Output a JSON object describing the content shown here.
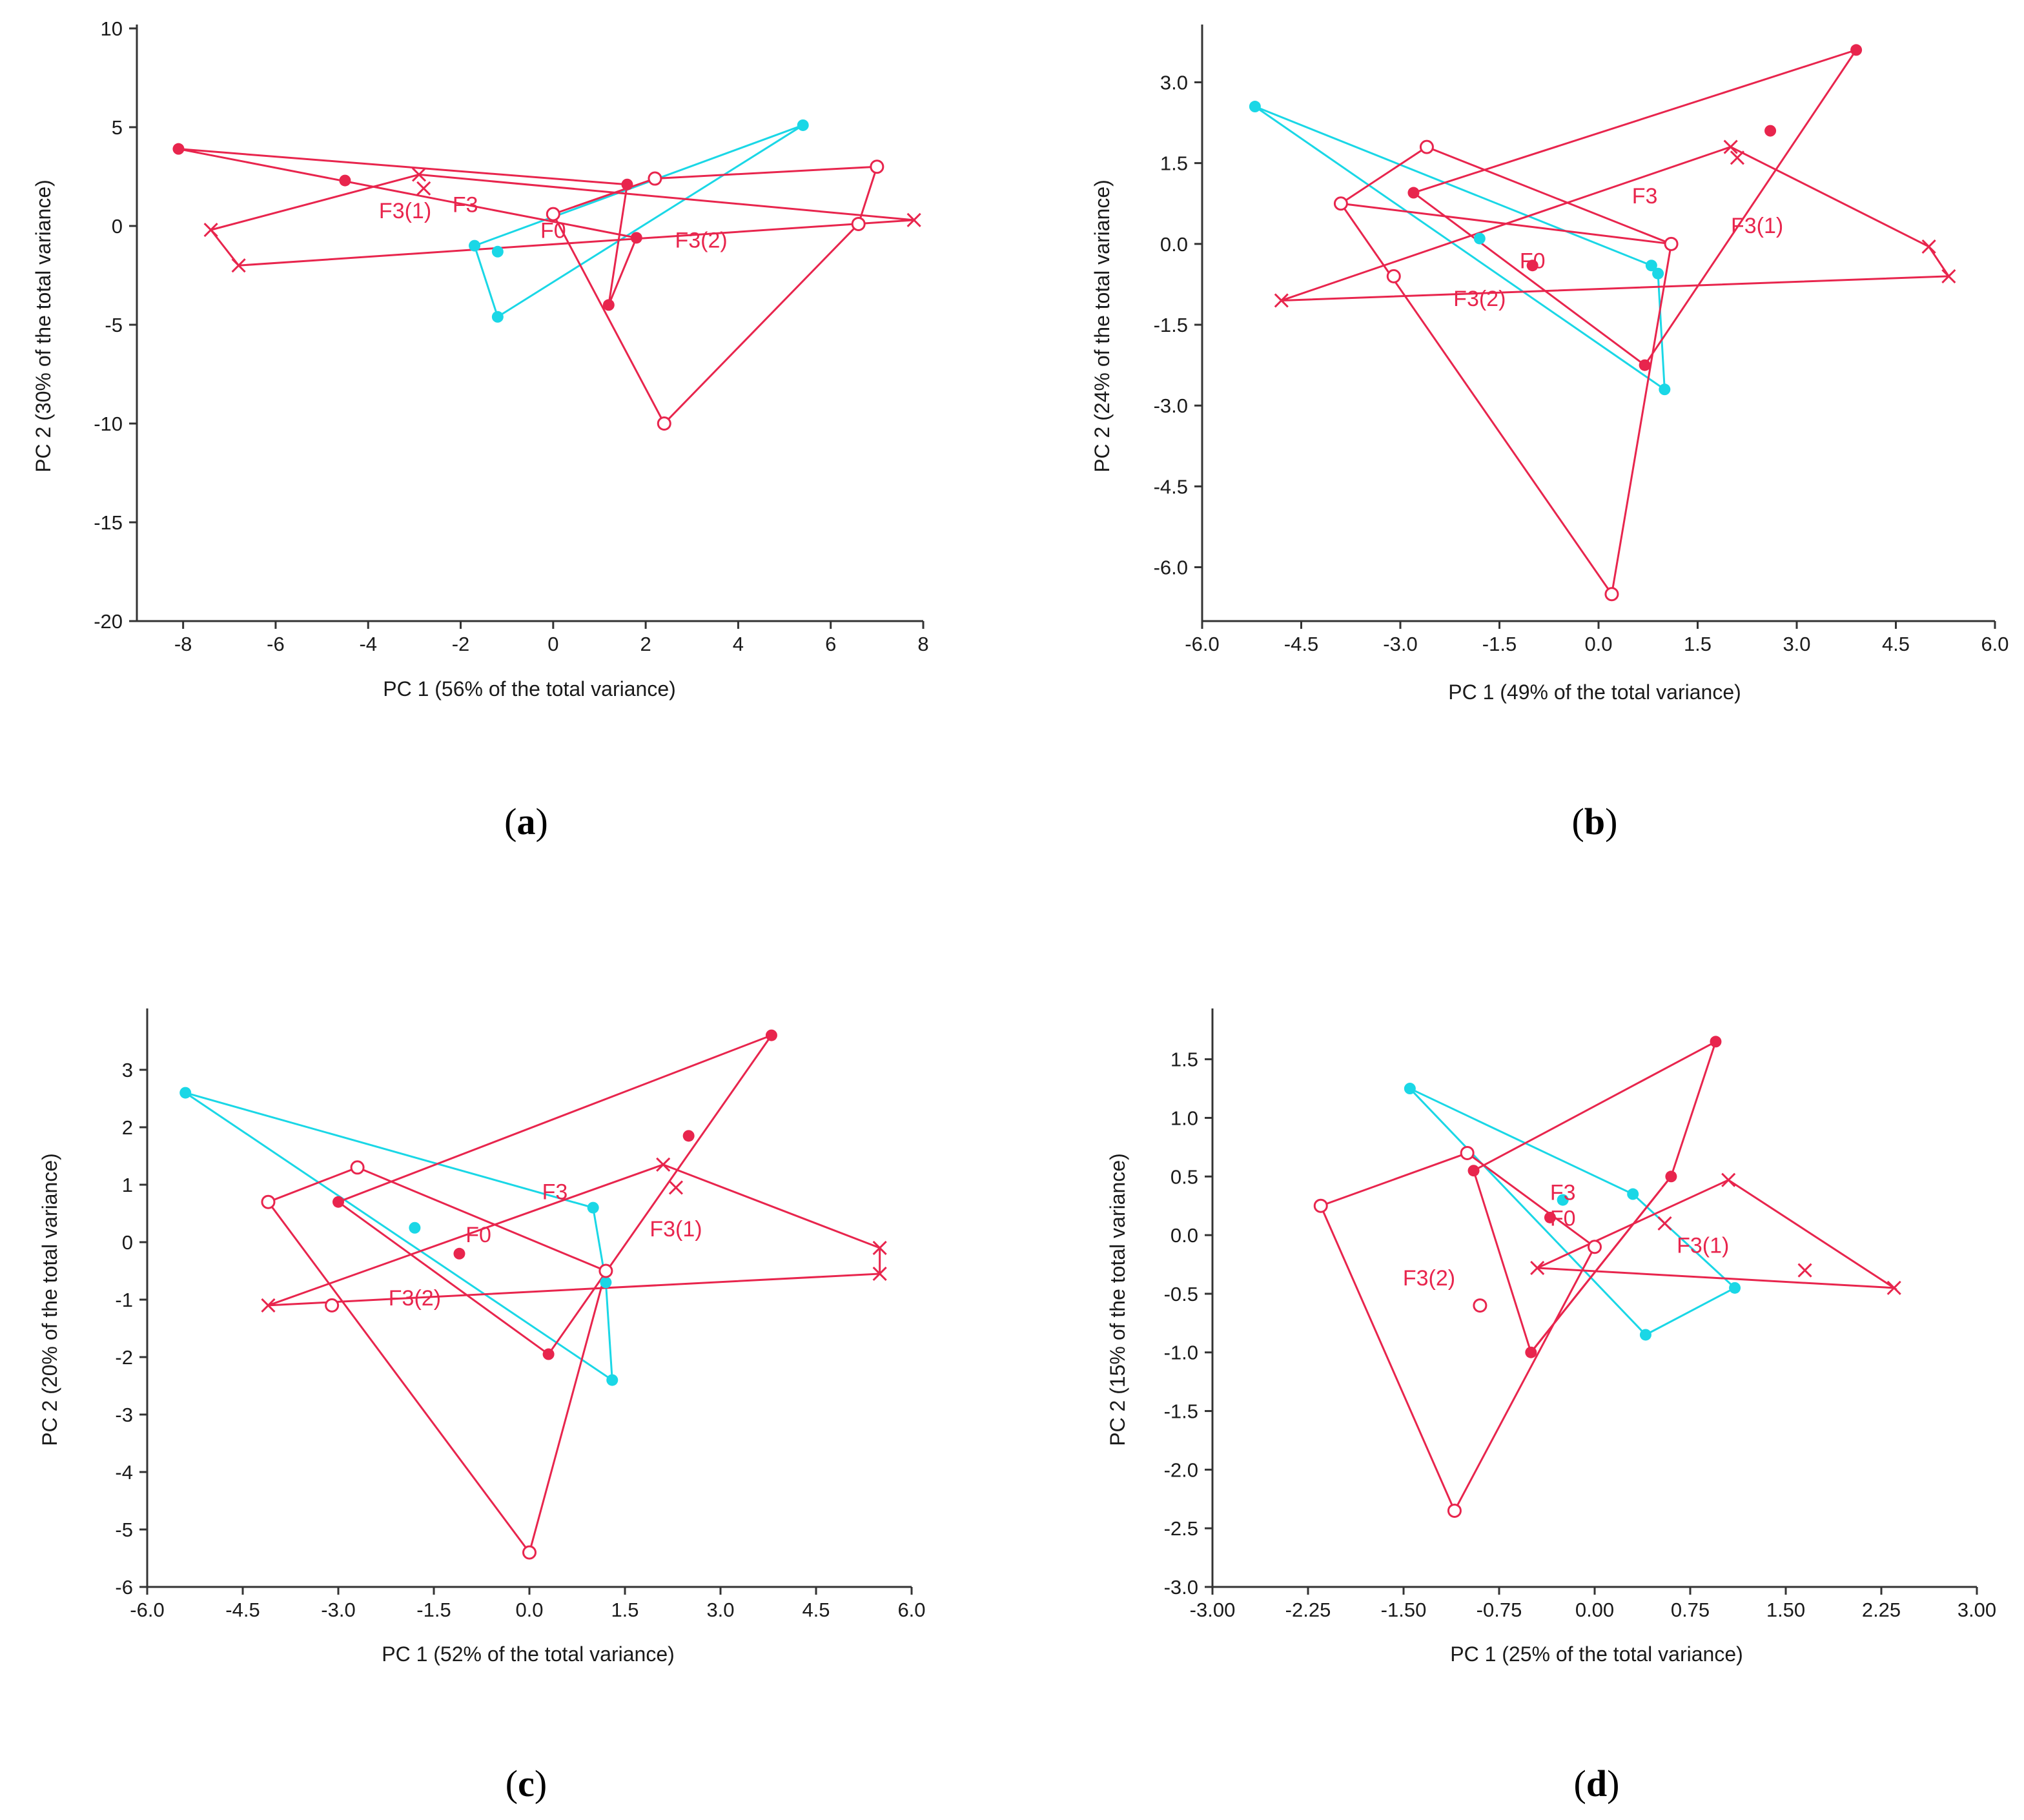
{
  "colors": {
    "red": "#e8254d",
    "cyan": "#1ad7e6",
    "axis": "#333333"
  },
  "chart_data": [
    {
      "id": "a",
      "type": "scatter",
      "panel_label": "a",
      "xlabel": "PC 1 (56% of the total variance)",
      "ylabel": "PC 2 (30% of the total variance)",
      "xlim": [
        -9.0,
        8.0
      ],
      "ylim": [
        -20,
        10
      ],
      "xticks": [
        "-8",
        "-6",
        "-4",
        "-2",
        "0",
        "2",
        "4",
        "6",
        "8"
      ],
      "xtick_values": [
        -8,
        -6,
        -4,
        -2,
        0,
        2,
        4,
        6,
        8
      ],
      "yticks": [
        "10",
        "5",
        "0",
        "-5",
        "-10",
        "-15",
        "-20"
      ],
      "ytick_values": [
        10,
        5,
        0,
        -5,
        -10,
        -15,
        -20
      ],
      "series": [
        {
          "name": "F3",
          "color": "cyan",
          "marker": "dot",
          "points": [
            [
              -1.7,
              -1.0
            ],
            [
              -1.2,
              -1.3
            ],
            [
              5.4,
              5.1
            ],
            [
              -1.2,
              -4.6
            ]
          ],
          "hull": [
            0,
            2,
            3,
            0
          ]
        },
        {
          "name": "F0",
          "color": "red",
          "marker": "dot",
          "points": [
            [
              -8.1,
              3.9
            ],
            [
              -4.5,
              2.3
            ],
            [
              1.6,
              2.1
            ],
            [
              1.8,
              -0.6
            ],
            [
              1.2,
              -4.0
            ]
          ],
          "hull": [
            0,
            2,
            4,
            3,
            0
          ]
        },
        {
          "name": "F3(1)",
          "color": "red",
          "marker": "circle",
          "points": [
            [
              0.0,
              0.6
            ],
            [
              2.2,
              2.4
            ],
            [
              7.0,
              3.0
            ],
            [
              6.6,
              0.1
            ],
            [
              2.4,
              -10.0
            ]
          ],
          "hull": [
            0,
            1,
            2,
            3,
            4,
            0
          ]
        },
        {
          "name": "F3(2)",
          "color": "red",
          "marker": "cross",
          "points": [
            [
              -7.4,
              -0.2
            ],
            [
              -2.9,
              2.6
            ],
            [
              -2.8,
              1.9
            ],
            [
              -6.8,
              -2.0
            ],
            [
              7.8,
              0.3
            ]
          ],
          "hull": [
            0,
            1,
            4,
            3,
            0
          ]
        }
      ],
      "labels": [
        {
          "text": "F3(1)",
          "x": -3.2,
          "y": 0.4
        },
        {
          "text": "F3",
          "x": -1.9,
          "y": 0.7
        },
        {
          "text": "F0",
          "x": 0.0,
          "y": -0.6
        },
        {
          "text": "F3(2)",
          "x": 3.2,
          "y": -1.1
        }
      ]
    },
    {
      "id": "b",
      "type": "scatter",
      "panel_label": "b",
      "xlabel": "PC 1 (49% of the total variance)",
      "ylabel": "PC 2 (24% of the total variance)",
      "xlim": [
        -6.0,
        6.0
      ],
      "ylim": [
        -7.0,
        4.0
      ],
      "xticks": [
        "-6.0",
        "-4.5",
        "-3.0",
        "-1.5",
        "0.0",
        "1.5",
        "3.0",
        "4.5",
        "6.0"
      ],
      "xtick_values": [
        -6.0,
        -4.5,
        -3.0,
        -1.5,
        0.0,
        1.5,
        3.0,
        4.5,
        6.0
      ],
      "yticks": [
        "3.0",
        "1.5",
        "0.0",
        "-1.5",
        "-3.0",
        "-4.5",
        "-6.0"
      ],
      "ytick_values": [
        3.0,
        1.5,
        0.0,
        -1.5,
        -3.0,
        -4.5,
        -6.0
      ],
      "series": [
        {
          "name": "F3",
          "color": "cyan",
          "marker": "dot",
          "points": [
            [
              -5.2,
              2.55
            ],
            [
              -1.8,
              0.1
            ],
            [
              0.8,
              -0.4
            ],
            [
              0.9,
              -0.55
            ],
            [
              1.0,
              -2.7
            ]
          ],
          "hull": [
            0,
            2,
            3,
            4,
            0
          ]
        },
        {
          "name": "F0",
          "color": "red",
          "marker": "dot",
          "points": [
            [
              3.9,
              3.6
            ],
            [
              2.6,
              2.1
            ],
            [
              -2.8,
              0.95
            ],
            [
              -1.0,
              -0.4
            ],
            [
              0.7,
              -2.25
            ]
          ],
          "hull": [
            0,
            2,
            4,
            0
          ]
        },
        {
          "name": "F3(1)",
          "color": "red",
          "marker": "circle",
          "points": [
            [
              -2.6,
              1.8
            ],
            [
              -3.9,
              0.75
            ],
            [
              1.1,
              0.0
            ],
            [
              -3.1,
              -0.6
            ],
            [
              0.2,
              -6.5
            ]
          ],
          "hull": [
            0,
            2,
            1,
            0
          ]
        },
        {
          "name": "F3(2)",
          "color": "red",
          "marker": "cross",
          "points": [
            [
              2.0,
              1.8
            ],
            [
              2.1,
              1.6
            ],
            [
              5.0,
              -0.05
            ],
            [
              5.3,
              -0.6
            ],
            [
              -4.8,
              -1.05
            ]
          ],
          "hull": [
            0,
            2,
            3,
            4,
            0
          ]
        }
      ],
      "extra_segments": [
        {
          "color": "red",
          "from": [
            -3.9,
            0.75
          ],
          "to": [
            0.2,
            -6.5
          ]
        },
        {
          "color": "red",
          "from": [
            0.2,
            -6.5
          ],
          "to": [
            1.1,
            0.0
          ]
        }
      ],
      "labels": [
        {
          "text": "F3",
          "x": 0.7,
          "y": 0.75
        },
        {
          "text": "F3(1)",
          "x": 2.4,
          "y": 0.2
        },
        {
          "text": "F0",
          "x": -1.0,
          "y": -0.45
        },
        {
          "text": "F3(2)",
          "x": -1.8,
          "y": -1.15
        }
      ]
    },
    {
      "id": "c",
      "type": "scatter",
      "panel_label": "c",
      "xlabel": "PC 1 (52% of the total variance)",
      "ylabel": "PC 2 (20% of the total variance)",
      "xlim": [
        -6.0,
        6.0
      ],
      "ylim": [
        -6,
        4
      ],
      "xticks": [
        "-6.0",
        "-4.5",
        "-3.0",
        "-1.5",
        "0.0",
        "1.5",
        "3.0",
        "4.5",
        "6.0"
      ],
      "xtick_values": [
        -6.0,
        -4.5,
        -3.0,
        -1.5,
        0.0,
        1.5,
        3.0,
        4.5,
        6.0
      ],
      "yticks": [
        "3",
        "2",
        "1",
        "0",
        "-1",
        "-2",
        "-3",
        "-4",
        "-5",
        "-6"
      ],
      "ytick_values": [
        3,
        2,
        1,
        0,
        -1,
        -2,
        -3,
        -4,
        -5,
        -6
      ],
      "series": [
        {
          "name": "F3",
          "color": "cyan",
          "marker": "dot",
          "points": [
            [
              -5.4,
              2.6
            ],
            [
              -1.8,
              0.25
            ],
            [
              1.0,
              0.6
            ],
            [
              1.2,
              -0.7
            ],
            [
              1.3,
              -2.4
            ]
          ],
          "hull": [
            0,
            2,
            3,
            4,
            0
          ]
        },
        {
          "name": "F0",
          "color": "red",
          "marker": "dot",
          "points": [
            [
              3.8,
              3.6
            ],
            [
              2.5,
              1.85
            ],
            [
              -3.0,
              0.7
            ],
            [
              -1.1,
              -0.2
            ],
            [
              0.3,
              -1.95
            ]
          ],
          "hull": [
            0,
            2,
            4,
            0
          ]
        },
        {
          "name": "F3(1)",
          "color": "red",
          "marker": "circle",
          "points": [
            [
              -2.7,
              1.3
            ],
            [
              -4.1,
              0.7
            ],
            [
              1.2,
              -0.5
            ],
            [
              -3.1,
              -1.1
            ],
            [
              0.0,
              -5.4
            ]
          ],
          "hull": [
            0,
            2,
            4,
            1,
            0
          ]
        },
        {
          "name": "F3(2)",
          "color": "red",
          "marker": "cross",
          "points": [
            [
              2.1,
              1.35
            ],
            [
              2.3,
              0.95
            ],
            [
              5.5,
              -0.1
            ],
            [
              5.5,
              -0.55
            ],
            [
              -4.1,
              -1.1
            ]
          ],
          "hull": [
            0,
            2,
            3,
            4,
            0
          ]
        }
      ],
      "labels": [
        {
          "text": "F3",
          "x": 0.4,
          "y": 0.75
        },
        {
          "text": "F0",
          "x": -0.8,
          "y": 0.0
        },
        {
          "text": "F3(1)",
          "x": 2.3,
          "y": 0.1
        },
        {
          "text": "F3(2)",
          "x": -1.8,
          "y": -1.1
        }
      ]
    },
    {
      "id": "d",
      "type": "scatter",
      "panel_label": "d",
      "xlabel": "PC 1 (25% of the total variance)",
      "ylabel": "PC 2 (15% of the total variance)",
      "xlim": [
        -3.0,
        3.0
      ],
      "ylim": [
        -3.0,
        1.9
      ],
      "xticks": [
        "-3.00",
        "-2.25",
        "-1.50",
        "-0.75",
        "0.00",
        "0.75",
        "1.50",
        "2.25",
        "3.00"
      ],
      "xtick_values": [
        -3.0,
        -2.25,
        -1.5,
        -0.75,
        0.0,
        0.75,
        1.5,
        2.25,
        3.0
      ],
      "yticks": [
        "1.5",
        "1.0",
        "0.5",
        "0.0",
        "-0.5",
        "-1.0",
        "-1.5",
        "-2.0",
        "-2.5",
        "-3.0"
      ],
      "ytick_values": [
        1.5,
        1.0,
        0.5,
        0.0,
        -0.5,
        -1.0,
        -1.5,
        -2.0,
        -2.5,
        -3.0
      ],
      "series": [
        {
          "name": "F3",
          "color": "cyan",
          "marker": "dot",
          "points": [
            [
              -1.45,
              1.25
            ],
            [
              -0.25,
              0.3
            ],
            [
              0.3,
              0.35
            ],
            [
              1.1,
              -0.45
            ],
            [
              0.4,
              -0.85
            ]
          ],
          "hull": [
            0,
            2,
            3,
            4,
            0
          ]
        },
        {
          "name": "F0",
          "color": "red",
          "marker": "dot",
          "points": [
            [
              0.95,
              1.65
            ],
            [
              0.6,
              0.5
            ],
            [
              -0.95,
              0.55
            ],
            [
              -0.35,
              0.15
            ],
            [
              -0.5,
              -1.0
            ]
          ],
          "hull": [
            0,
            1,
            4,
            2,
            0
          ]
        },
        {
          "name": "F3(1)",
          "color": "red",
          "marker": "circle",
          "points": [
            [
              -1.0,
              0.7
            ],
            [
              -2.15,
              0.25
            ],
            [
              0.0,
              -0.1
            ],
            [
              -0.9,
              -0.6
            ],
            [
              -1.1,
              -2.35
            ]
          ],
          "hull": [
            0,
            2,
            4,
            1,
            0
          ]
        },
        {
          "name": "F3(2)",
          "color": "red",
          "marker": "cross",
          "points": [
            [
              1.05,
              0.47
            ],
            [
              0.55,
              0.1
            ],
            [
              1.65,
              -0.3
            ],
            [
              2.35,
              -0.45
            ],
            [
              -0.45,
              -0.28
            ]
          ],
          "hull": [
            0,
            3,
            4,
            0
          ]
        }
      ],
      "extra_segments": [
        {
          "color": "red",
          "from": [
            -0.5,
            -1.0
          ],
          "to": [
            0.6,
            0.5
          ]
        }
      ],
      "labels": [
        {
          "text": "F3",
          "x": -0.25,
          "y": 0.3
        },
        {
          "text": "F0",
          "x": -0.25,
          "y": 0.08
        },
        {
          "text": "F3(1)",
          "x": 0.85,
          "y": -0.15
        },
        {
          "text": "F3(2)",
          "x": -1.3,
          "y": -0.43
        }
      ]
    }
  ]
}
